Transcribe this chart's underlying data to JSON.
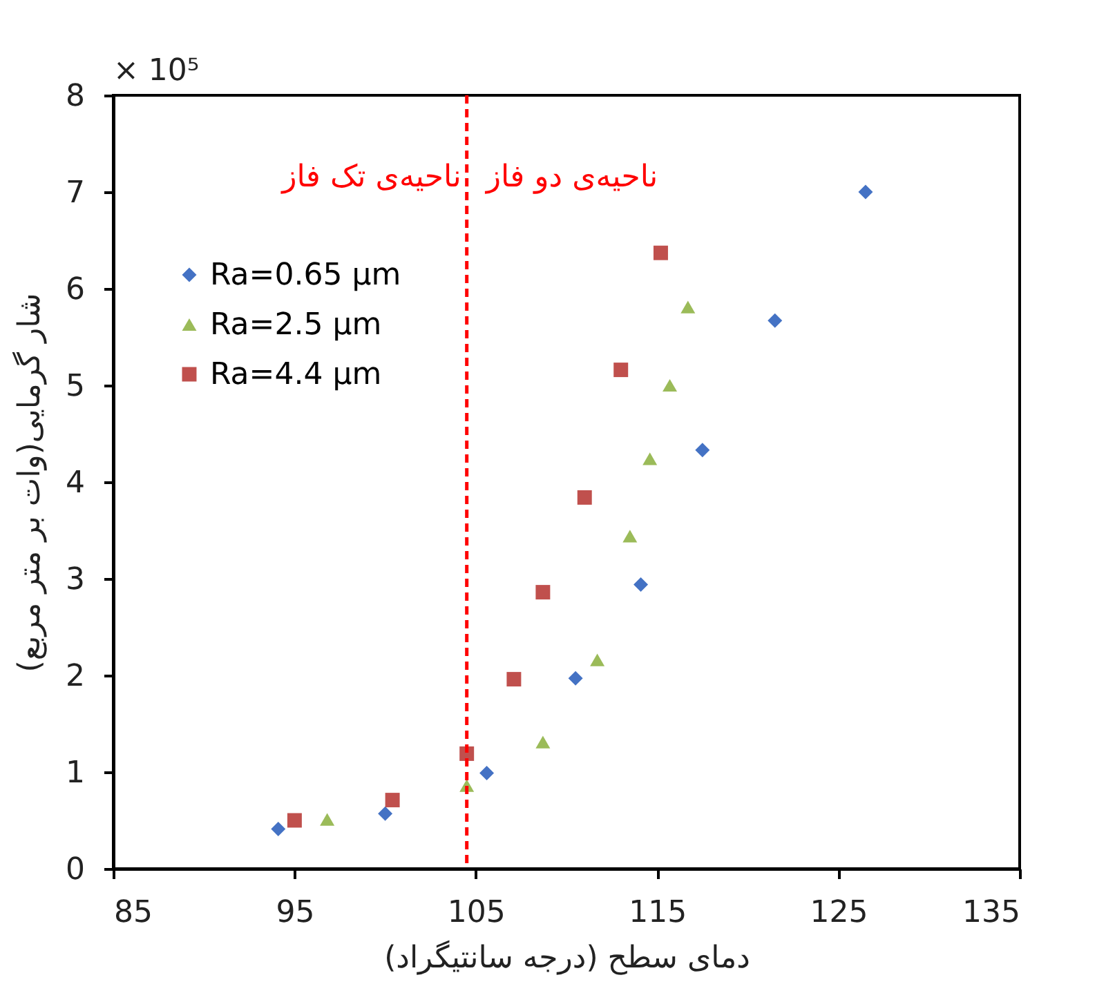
{
  "chart_data": {
    "type": "scatter",
    "xlabel": "دمای سطح (درجه سانتیگراد)",
    "ylabel": "شار گرمایی(وات بر متر مربع)",
    "annotations": [
      "× 10⁵",
      "ناحیه‌ی تک فاز",
      "ناحیه‌ی دو فاز"
    ],
    "xlim": [
      85,
      135
    ],
    "xticks": [
      85,
      95,
      105,
      115,
      125,
      135
    ],
    "ylim": [
      0,
      8
    ],
    "yticks": [
      0,
      1,
      2,
      3,
      4,
      5,
      6,
      7,
      8
    ],
    "grid": false,
    "legend": "top left",
    "ref_lines": [
      {
        "axis": "x",
        "value": 104.5,
        "color": "#ff0000",
        "line_style": "dashed"
      }
    ],
    "series": [
      {
        "name": "Ra=0.65 µm",
        "color": "#4472c4",
        "marker": "diamond",
        "x": [
          94.1,
          100.0,
          105.6,
          110.5,
          114.1,
          117.5,
          121.5,
          126.5
        ],
        "values": [
          0.41,
          0.57,
          0.99,
          1.97,
          2.94,
          4.33,
          5.67,
          7.0
        ]
      },
      {
        "name": "Ra=2.5 µm",
        "color": "#9bbb59",
        "marker": "triangle",
        "x": [
          96.8,
          104.5,
          108.7,
          111.7,
          113.5,
          114.6,
          115.7,
          116.7
        ],
        "values": [
          0.51,
          0.86,
          1.31,
          2.16,
          3.44,
          4.24,
          5.0,
          5.81
        ]
      },
      {
        "name": "Ra=4.4 µm",
        "color": "#c0504d",
        "marker": "square",
        "x": [
          95.0,
          100.4,
          104.5,
          107.1,
          108.7,
          111.0,
          113.0,
          115.2
        ],
        "values": [
          0.5,
          0.71,
          1.19,
          1.96,
          2.86,
          3.84,
          5.16,
          6.37
        ]
      }
    ]
  }
}
